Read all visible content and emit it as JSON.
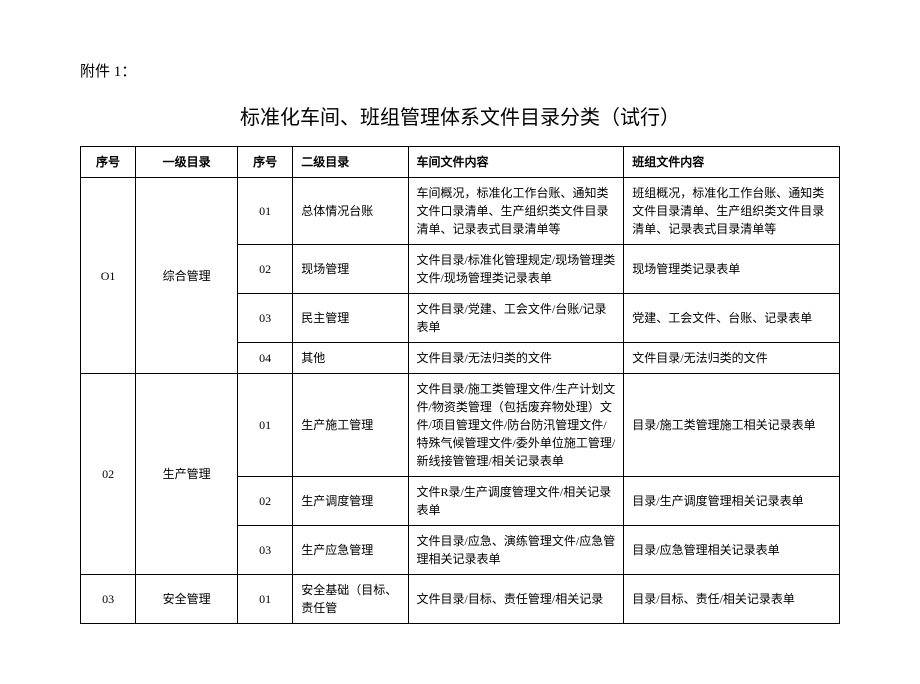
{
  "header_label": "附件 1：",
  "title": "标准化车间、班组管理体系文件目录分类（试行）",
  "columns": {
    "seq1": "序号",
    "cat1": "一级目录",
    "seq2": "序号",
    "cat2": "二级目录",
    "content1": "车间文件内容",
    "content2": "班组文件内容"
  },
  "rows": [
    {
      "seq1": "O1",
      "cat1": "综合管理",
      "subs": [
        {
          "seq2": "01",
          "cat2": "总体情况台账",
          "c1": "车间概况，标准化工作台账、通知类文件口录清单、生产组织类文件目录清单、记录表式目录清单等",
          "c2": "班组概况，标准化工作台账、通知类文件目录清单、生产组织类文件目录清单、记录表式目录清单等"
        },
        {
          "seq2": "02",
          "cat2": "现场管理",
          "c1": "文件目录/标准化管理规定/现场管理类文件/现场管理类记录表单",
          "c2": "现场管理类记录表单"
        },
        {
          "seq2": "03",
          "cat2": "民主管理",
          "c1": "文件目录/党建、工会文件/台账/记录表单",
          "c2": "党建、工会文件、台账、记录表单"
        },
        {
          "seq2": "04",
          "cat2": "其他",
          "c1": "文件目录/无法归类的文件",
          "c2": "文件目录/无法归类的文件"
        }
      ]
    },
    {
      "seq1": "02",
      "cat1": "生产管理",
      "subs": [
        {
          "seq2": "01",
          "cat2": "生产施工管理",
          "c1": "文件目录/施工类管理文件/生产计划文件/物资类管理（包括废弃物处理）文件/项目管理文件/防台防汛管理文件/特殊气候管理文件/委外单位施工管理/新线接管管理/相关记录表单",
          "c2": "目录/施工类管理施工相关记录表单"
        },
        {
          "seq2": "02",
          "cat2": "生产调度管理",
          "c1": "文件R录/生产调度管理文件/相关记录表单",
          "c2": "目录/生产调度管理相关记录表单"
        },
        {
          "seq2": "03",
          "cat2": "生产应急管理",
          "c1": "文件目录/应急、演练管理文件/应急管理相关记录表单",
          "c2": "目录/应急管理相关记录表单"
        }
      ]
    },
    {
      "seq1": "03",
      "cat1": "安全管理",
      "subs": [
        {
          "seq2": "01",
          "cat2": "安全基础（目标、责任管",
          "c1": "文件目录/目标、责任管理/相关记录",
          "c2": "目录/目标、责任/相关记录表单"
        }
      ]
    }
  ]
}
